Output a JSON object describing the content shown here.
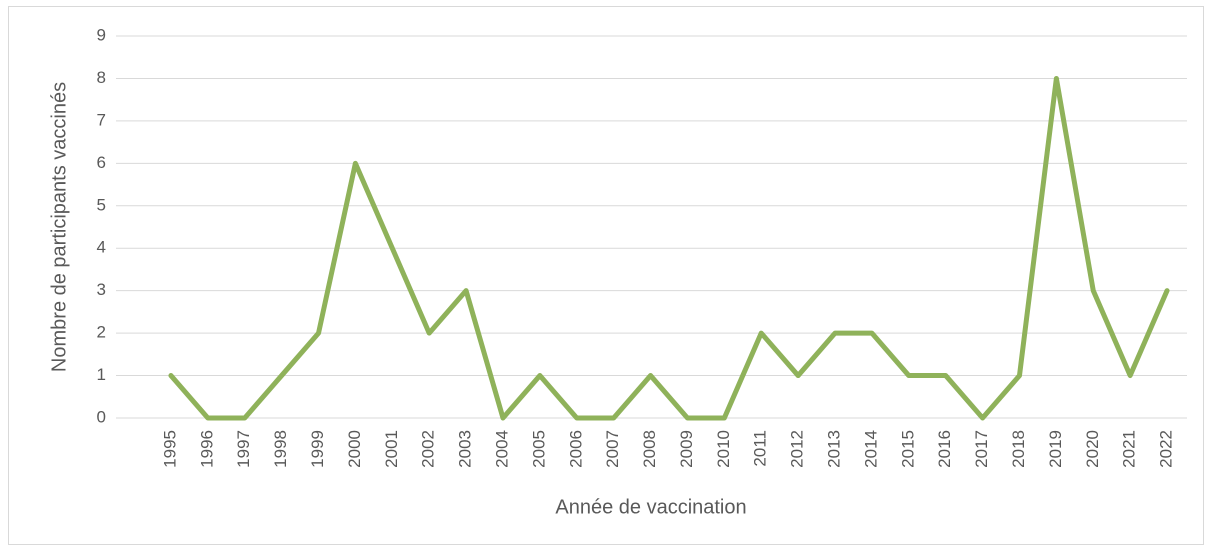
{
  "chart_data": {
    "type": "line",
    "xlabel": "Année de vaccination",
    "ylabel": "Nombre de participants vaccinés",
    "categories": [
      "1995",
      "1996",
      "1997",
      "1998",
      "1999",
      "2000",
      "2001",
      "2002",
      "2003",
      "2004",
      "2005",
      "2006",
      "2007",
      "2008",
      "2009",
      "2010",
      "2011",
      "2012",
      "2013",
      "2014",
      "2015",
      "2016",
      "2017",
      "2018",
      "2019",
      "2020",
      "2021",
      "2022"
    ],
    "series": [
      {
        "color": "#8fb25a",
        "values": [
          1,
          0,
          0,
          1,
          2,
          6,
          4,
          2,
          3,
          0,
          1,
          0,
          0,
          1,
          0,
          0,
          2,
          1,
          2,
          2,
          1,
          1,
          0,
          1,
          8,
          3,
          1,
          3
        ]
      }
    ],
    "ylim": [
      0,
      9
    ],
    "yticks": [
      0,
      1,
      2,
      3,
      4,
      5,
      6,
      7,
      8,
      9
    ],
    "grid": true
  }
}
